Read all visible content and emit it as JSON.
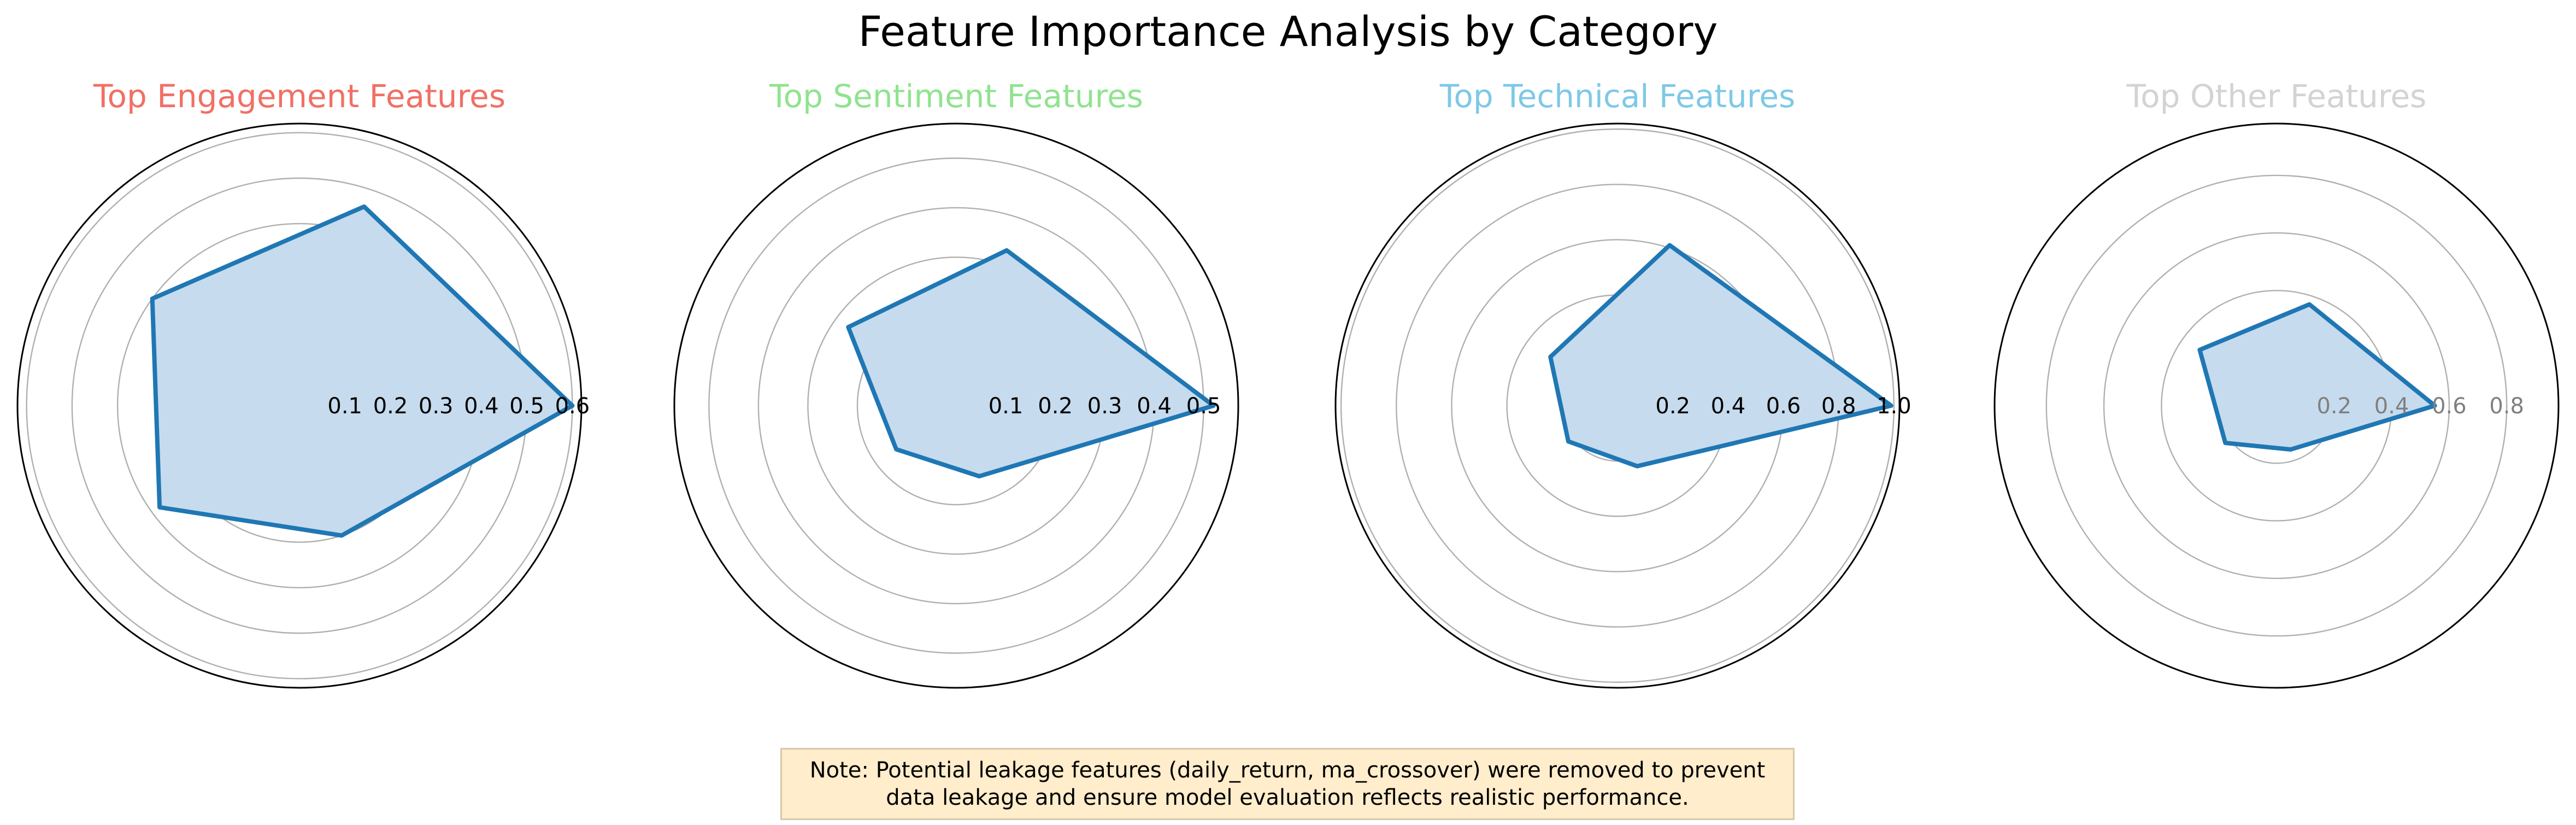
{
  "figure": {
    "title": "Feature Importance Analysis by Category",
    "note": {
      "line1": "Note: Potential leakage features (daily_return, ma_crossover) were removed to prevent",
      "line2": "data leakage and ensure model evaluation reflects realistic performance."
    },
    "series_color": "#1f77b4",
    "fill_color": "#c6dbed"
  },
  "chart_data": [
    {
      "type": "radar",
      "title": "Top Engagement Features",
      "title_color": "#f07065",
      "rmax": 0.62,
      "ticks": [
        0.1,
        0.2,
        0.3,
        0.4,
        0.5,
        0.6
      ],
      "tick_labels": [
        "0.1",
        "0.2",
        "0.3",
        "0.4",
        "0.5",
        "0.6"
      ],
      "tick_label_color": "#000000",
      "angles_deg": [
        0,
        72,
        144,
        216,
        288
      ],
      "values": [
        0.6,
        0.46,
        0.4,
        0.38,
        0.3
      ]
    },
    {
      "type": "radar",
      "title": "Top Sentiment Features",
      "title_color": "#90e38f",
      "rmax": 0.57,
      "ticks": [
        0.1,
        0.2,
        0.3,
        0.4,
        0.5
      ],
      "tick_labels": [
        "0.1",
        "0.2",
        "0.3",
        "0.4",
        "0.5"
      ],
      "tick_label_color": "#000000",
      "angles_deg": [
        0,
        72,
        144,
        216,
        288
      ],
      "values": [
        0.52,
        0.33,
        0.27,
        0.15,
        0.15
      ]
    },
    {
      "type": "radar",
      "title": "Top Technical Features",
      "title_color": "#7ec9e6",
      "rmax": 1.02,
      "ticks": [
        0.2,
        0.4,
        0.6,
        0.8,
        1.0
      ],
      "tick_labels": [
        "0.2",
        "0.4",
        "0.6",
        "0.8",
        "1.0"
      ],
      "tick_label_color": "#000000",
      "angles_deg": [
        0,
        72,
        144,
        216,
        288
      ],
      "values": [
        0.99,
        0.61,
        0.3,
        0.22,
        0.23
      ]
    },
    {
      "type": "radar",
      "title": "Top Other Features",
      "title_color": "#d3d3d3",
      "rmax": 0.98,
      "ticks": [
        0.2,
        0.4,
        0.6,
        0.8
      ],
      "tick_labels": [
        "0.2",
        "0.4",
        "0.6",
        "0.8"
      ],
      "tick_label_color": "#808080",
      "angles_deg": [
        0,
        72,
        144,
        216,
        288
      ],
      "values": [
        0.55,
        0.37,
        0.33,
        0.22,
        0.16
      ]
    }
  ]
}
